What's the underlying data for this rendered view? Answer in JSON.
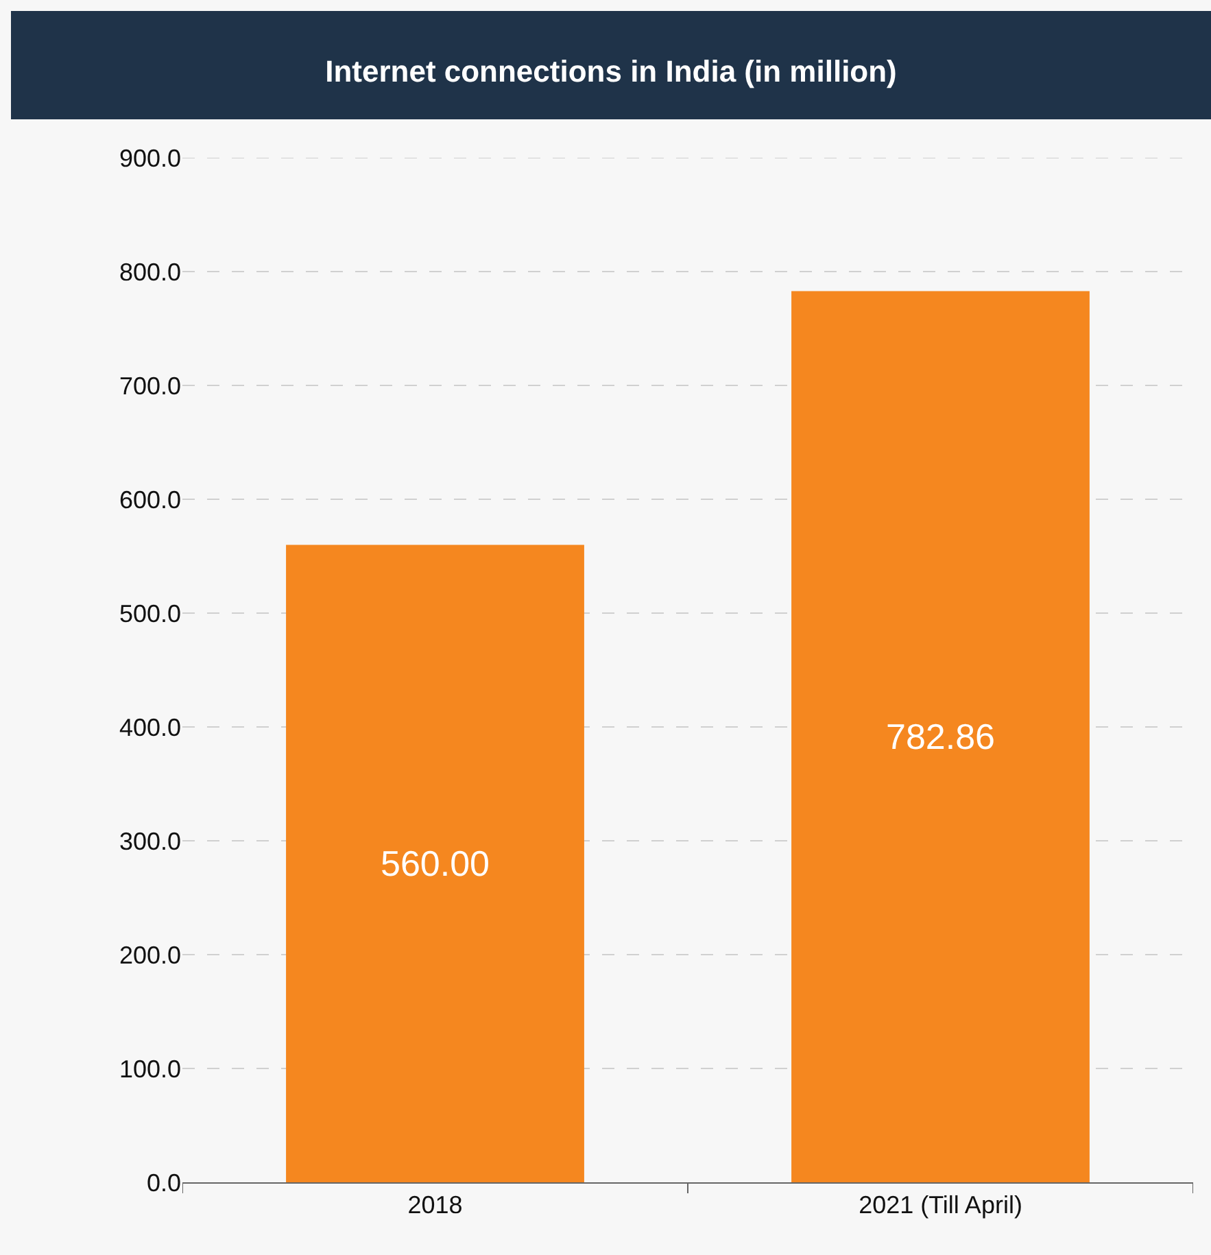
{
  "chart_data": {
    "type": "bar",
    "title": "Internet connections in India (in million)",
    "categories": [
      "2018",
      "2021 (Till April)"
    ],
    "values": [
      560.0,
      782.86
    ],
    "value_labels": [
      "560.00",
      "782.86"
    ],
    "color": "#f5871f",
    "ylim": [
      0,
      900
    ],
    "yticks": [
      {
        "value": 0,
        "label": "0.0"
      },
      {
        "value": 100,
        "label": "100.0"
      },
      {
        "value": 200,
        "label": "200.0"
      },
      {
        "value": 300,
        "label": "300.0"
      },
      {
        "value": 400,
        "label": "400.0"
      },
      {
        "value": 500,
        "label": "500.0"
      },
      {
        "value": 600,
        "label": "600.0"
      },
      {
        "value": 700,
        "label": "700.0"
      },
      {
        "value": 800,
        "label": "800.0"
      },
      {
        "value": 900,
        "label": "900.0"
      }
    ],
    "grid": "y"
  }
}
